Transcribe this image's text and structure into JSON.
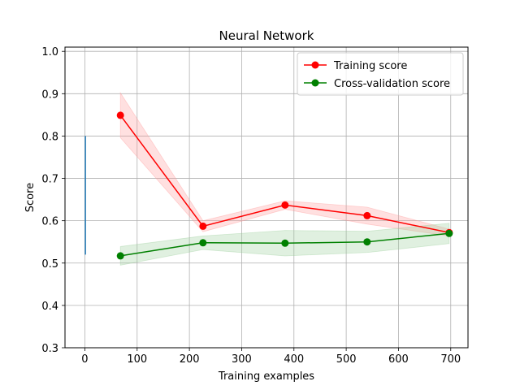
{
  "chart_data": {
    "type": "line",
    "title": "Neural Network",
    "xlabel": "Training examples",
    "ylabel": "Score",
    "xlim": [
      -38,
      733
    ],
    "ylim": [
      0.3,
      1.01
    ],
    "xticks": [
      0,
      100,
      200,
      300,
      400,
      500,
      600,
      700
    ],
    "yticks": [
      0.3,
      0.4,
      0.5,
      0.6,
      0.7,
      0.8,
      0.9,
      1.0
    ],
    "grid": true,
    "legend_position": "top-right",
    "x": [
      68,
      226,
      383,
      540,
      697
    ],
    "series": [
      {
        "name": "Training score",
        "color": "#ff0000",
        "band_color": "#ff9999",
        "values": [
          0.849,
          0.587,
          0.637,
          0.612,
          0.572
        ],
        "band_upper": [
          0.902,
          0.6,
          0.647,
          0.632,
          0.58
        ],
        "band_lower": [
          0.796,
          0.574,
          0.627,
          0.592,
          0.564
        ]
      },
      {
        "name": "Cross-validation score",
        "color": "#008000",
        "band_color": "#99cc99",
        "values": [
          0.517,
          0.548,
          0.547,
          0.55,
          0.57
        ],
        "band_upper": [
          0.539,
          0.564,
          0.577,
          0.575,
          0.594
        ],
        "band_lower": [
          0.495,
          0.532,
          0.517,
          0.525,
          0.546
        ]
      },
      {
        "color": "#1f77b4",
        "x": [
          1,
          1,
          1
        ],
        "values": [
          0.52,
          0.62,
          0.8
        ]
      }
    ]
  }
}
